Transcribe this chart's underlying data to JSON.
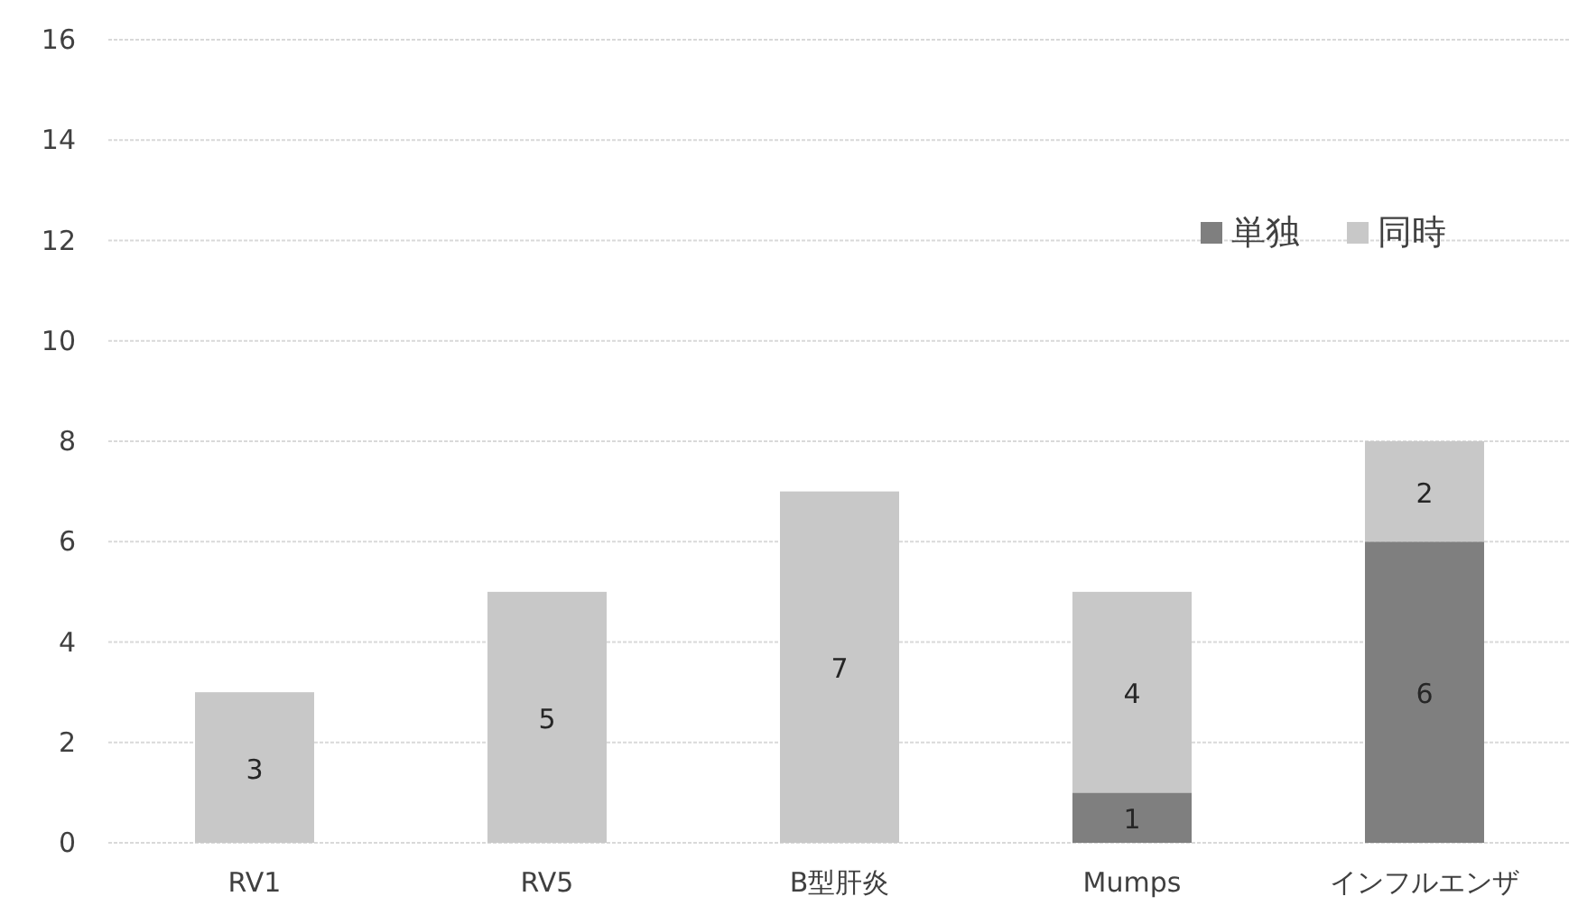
{
  "chart_data": {
    "type": "bar",
    "stacked": true,
    "categories": [
      "RV1",
      "RV5",
      "B型肝炎",
      "Mumps",
      "インフルエンザ"
    ],
    "series": [
      {
        "name": "単独",
        "color": "#7f7f7f",
        "values": [
          0,
          0,
          0,
          1,
          6
        ],
        "value_labels": [
          null,
          null,
          null,
          "1",
          "6"
        ]
      },
      {
        "name": "同時",
        "color": "#c8c8c8",
        "values": [
          3,
          5,
          7,
          4,
          2
        ],
        "value_labels": [
          "3",
          "5",
          "7",
          "4",
          "2"
        ]
      }
    ],
    "ylim": [
      0,
      16
    ],
    "yticks": [
      0,
      2,
      4,
      6,
      8,
      10,
      12,
      14,
      16
    ],
    "grid": "y",
    "legend": "top right"
  }
}
